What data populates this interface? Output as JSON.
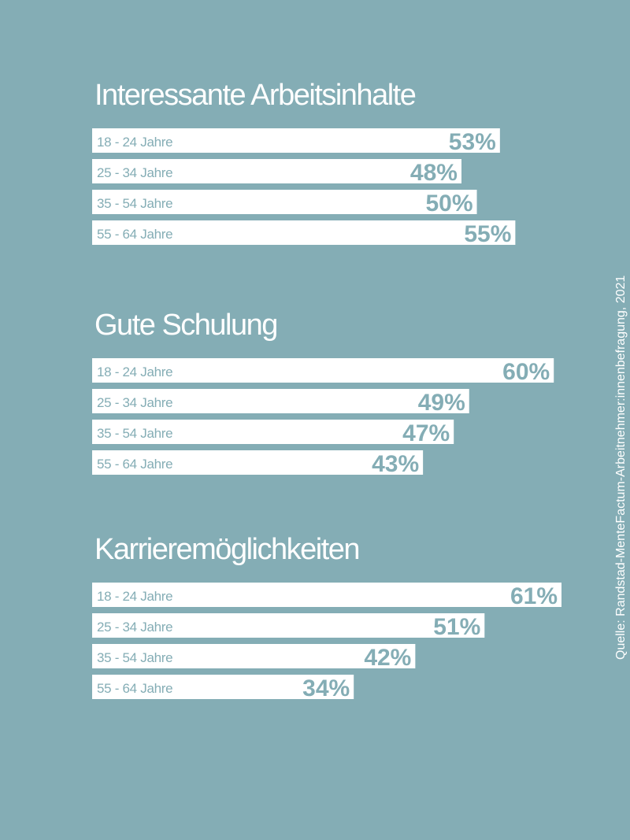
{
  "colors": {
    "background": "#84adb5",
    "bar": "#ffffff",
    "label": "#84adb5",
    "title": "#ffffff"
  },
  "source": "Quelle: Randstad-MenteFactum-Arbeitnehmer:innenbefragung, 2021",
  "chart_data": [
    {
      "type": "bar",
      "orientation": "horizontal",
      "title": "Interessante Arbeitsinhalte",
      "categories": [
        "18 - 24 Jahre",
        "25 - 34 Jahre",
        "35 - 54 Jahre",
        "55 - 64 Jahre"
      ],
      "values": [
        53,
        48,
        50,
        55
      ],
      "unit": "%",
      "xlim": [
        0,
        60
      ],
      "grid": false
    },
    {
      "type": "bar",
      "orientation": "horizontal",
      "title": "Gute Schulung",
      "categories": [
        "18 - 24 Jahre",
        "25 - 34 Jahre",
        "35 - 54 Jahre",
        "55 - 64 Jahre"
      ],
      "values": [
        60,
        49,
        47,
        43
      ],
      "unit": "%",
      "xlim": [
        0,
        60
      ],
      "grid": false
    },
    {
      "type": "bar",
      "orientation": "horizontal",
      "title": "Karrieremöglichkeiten",
      "categories": [
        "18 - 24 Jahre",
        "25 - 34 Jahre",
        "35 - 54 Jahre",
        "55 - 64 Jahre"
      ],
      "values": [
        61,
        51,
        42,
        34
      ],
      "unit": "%",
      "xlim": [
        0,
        60
      ],
      "grid": false
    }
  ]
}
